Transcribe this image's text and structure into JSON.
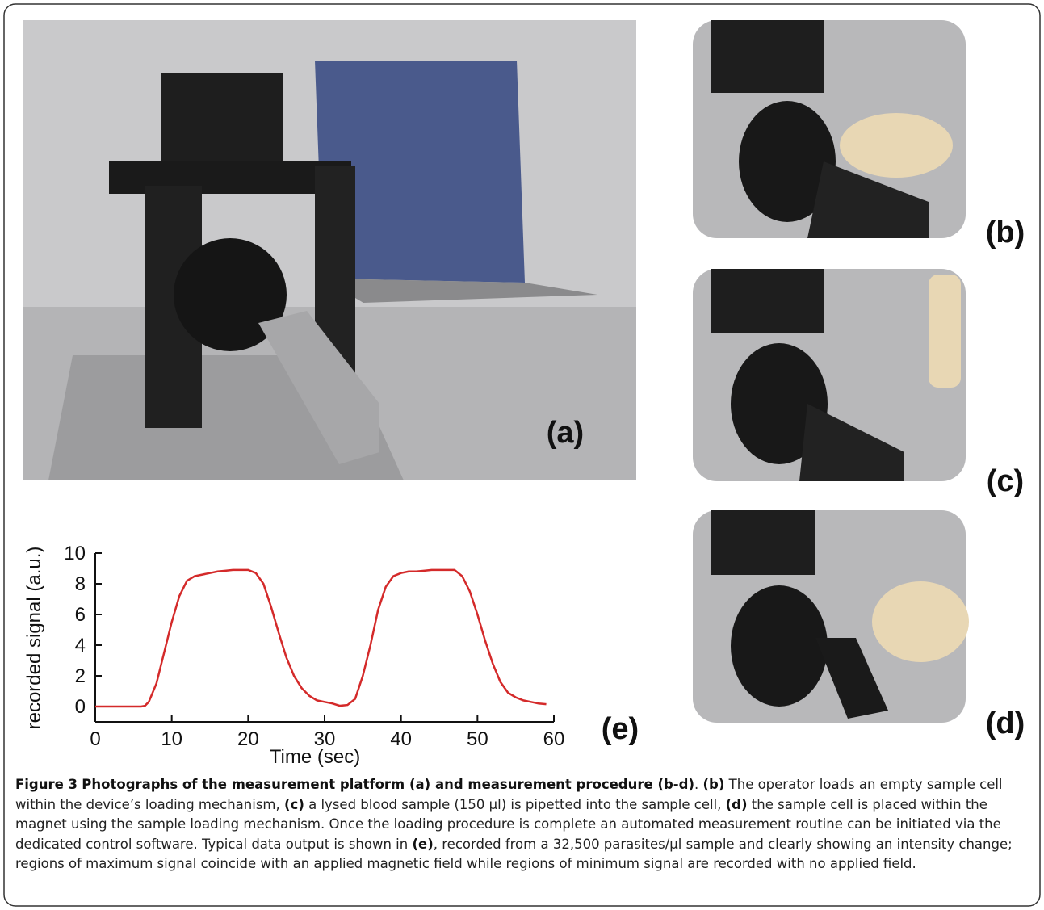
{
  "panels": {
    "a": "(a)",
    "b": "(b)",
    "c": "(c)",
    "d": "(d)"
  },
  "chart_data": {
    "type": "line",
    "panel_label": "(e)",
    "x_label": "Time (sec)",
    "y_label": "recorded signal (a.u.)",
    "x": [
      0,
      1,
      2,
      3,
      4,
      5,
      6,
      6.5,
      7,
      8,
      9,
      10,
      11,
      12,
      13,
      14,
      15,
      16,
      17,
      18,
      19,
      20,
      21,
      22,
      23,
      24,
      25,
      26,
      27,
      28,
      29,
      30,
      31,
      32,
      33,
      34,
      35,
      36,
      37,
      38,
      39,
      40,
      41,
      42,
      43,
      44,
      45,
      46,
      47,
      48,
      49,
      50,
      51,
      52,
      53,
      54,
      55,
      56,
      57,
      58,
      59
    ],
    "series": [
      {
        "color": "#d42a2a",
        "values": [
          0,
          0,
          0,
          0,
          0,
          0,
          0,
          0.05,
          0.3,
          1.5,
          3.5,
          5.5,
          7.2,
          8.2,
          8.5,
          8.6,
          8.7,
          8.8,
          8.85,
          8.9,
          8.9,
          8.9,
          8.7,
          8,
          6.5,
          4.8,
          3.2,
          2,
          1.2,
          0.7,
          0.4,
          0.3,
          0.2,
          0.05,
          0.1,
          0.5,
          2,
          4,
          6.3,
          7.8,
          8.5,
          8.7,
          8.8,
          8.8,
          8.85,
          8.9,
          8.9,
          8.9,
          8.9,
          8.5,
          7.5,
          6,
          4.3,
          2.8,
          1.6,
          0.9,
          0.6,
          0.4,
          0.3,
          0.2,
          0.15
        ]
      }
    ],
    "xlim": [
      0,
      60
    ],
    "xticks": [
      0,
      10,
      20,
      30,
      40,
      50,
      60
    ],
    "ylim": [
      -1,
      10
    ],
    "yticks": [
      0,
      2,
      4,
      6,
      8,
      10
    ]
  },
  "caption": {
    "label": "Figure 3",
    "title": "Photographs of the measurement platform (a) and measurement procedure (b-d)",
    "body": [
      ". ",
      "(b)",
      " The operator loads an empty sample cell within the device’s loading mechanism, ",
      "(c)",
      " a lysed blood sample (150 µl) is pipetted into the sample cell, ",
      "(d)",
      " the sample cell is placed within the magnet using the sample loading mechanism. Once the loading procedure is complete an automated measurement routine can be initiated via the dedicated control software. Typical data output is shown in ",
      "(e)",
      ", recorded from a 32,500 parasites/µl sample and clearly showing an intensity change; regions of maximum signal coincide with an applied magnetic field while regions of minimum signal are recorded with no applied field."
    ]
  }
}
